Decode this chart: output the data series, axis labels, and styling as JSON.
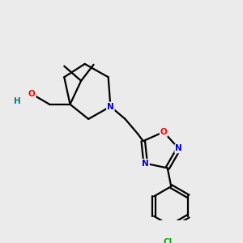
{
  "background_color": "#ebebeb",
  "bond_color": "#000000",
  "atom_colors": {
    "O": "#ff0000",
    "N": "#0000cd",
    "Cl": "#00aa00",
    "H": "#008080",
    "C": "#000000"
  },
  "fig_size": [
    3.0,
    3.0
  ],
  "dpi": 100,
  "xlim": [
    0,
    3
  ],
  "ylim": [
    0,
    3
  ]
}
